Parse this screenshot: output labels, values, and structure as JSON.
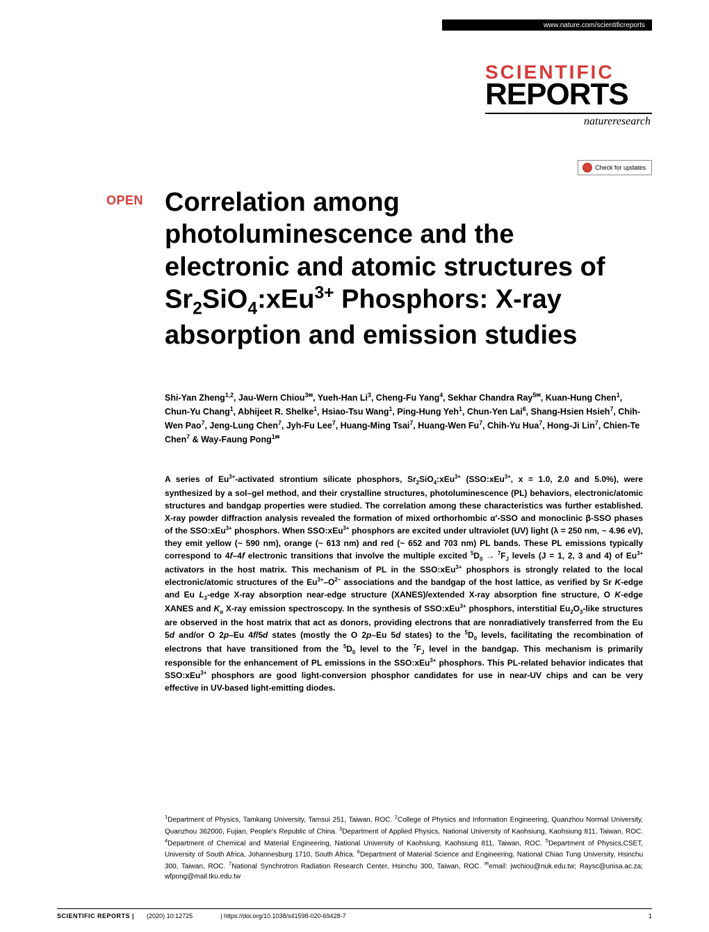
{
  "header": {
    "url": "www.nature.com/scientificreports"
  },
  "logo": {
    "line1": "SCIENTIFIC",
    "line2": "REPORTS",
    "subbrand": "natureresearch"
  },
  "updates_label": "Check for updates",
  "open_label": "OPEN",
  "title_html": "Correlation among photoluminescence and the electronic and atomic structures of Sr<sub>2</sub>SiO<sub>4</sub>:xEu<sup>3+</sup> Phosphors: X-ray absorption and emission studies",
  "authors_html": "Shi-Yan Zheng<sup>1,2</sup>, Jau-Wern Chiou<sup>3<span class='mail'>✉</span></sup>, Yueh-Han Li<sup>3</sup>, Cheng-Fu Yang<sup>4</sup>, Sekhar Chandra Ray<sup>5<span class='mail'>✉</span></sup>, Kuan-Hung Chen<sup>1</sup>, Chun-Yu Chang<sup>1</sup>, Abhijeet R. Shelke<sup>1</sup>, Hsiao-Tsu Wang<sup>1</sup>, Ping-Hung Yeh<sup>1</sup>, Chun-Yen Lai<sup>6</sup>, Shang-Hsien Hsieh<sup>7</sup>, Chih-Wen Pao<sup>7</sup>, Jeng-Lung Chen<sup>7</sup>, Jyh-Fu Lee<sup>7</sup>, Huang-Ming Tsai<sup>7</sup>, Huang-Wen Fu<sup>7</sup>, Chih-Yu Hua<sup>7</sup>, Hong-Ji Lin<sup>7</sup>, Chien-Te Chen<sup>7</sup> & Way-Faung Pong<sup>1<span class='mail'>✉</span></sup>",
  "abstract_html": "A series of Eu<sup>3+</sup>-activated strontium silicate phosphors, Sr<sub>2</sub>SiO<sub>4</sub>:xEu<sup>3+</sup> (SSO:xEu<sup>3+</sup>, x = 1.0, 2.0 and 5.0%), were synthesized by a sol–gel method, and their crystalline structures, photoluminescence (PL) behaviors, electronic/atomic structures and bandgap properties were studied. The correlation among these characteristics was further established. X-ray powder diffraction analysis revealed the formation of mixed orthorhombic α′-SSO and monoclinic β-SSO phases of the SSO:xEu<sup>3+</sup> phosphors. When SSO:xEu<sup>3+</sup> phosphors are excited under ultraviolet (UV) light (λ = 250 nm, ~ 4.96 eV), they emit yellow (~ 590 nm), orange (~ 613 nm) and red (~ 652 and 703 nm) PL bands. These PL emissions typically correspond to 4<i>f</i>–4<i>f</i> electronic transitions that involve the multiple excited <sup>5</sup>D<sub>0</sub> → <sup>7</sup>F<sub>J</sub> levels (J = 1, 2, 3 and 4) of Eu<sup>3+</sup> activators in the host matrix. This mechanism of PL in the SSO:xEu<sup>3+</sup> phosphors is strongly related to the local electronic/atomic structures of the Eu<sup>3+</sup>–O<sup>2−</sup> associations and the bandgap of the host lattice, as verified by Sr <i>K</i>-edge and Eu <i>L</i><sub>3</sub>-edge X-ray absorption near-edge structure (XANES)/extended X-ray absorption fine structure, O <i>K</i>-edge XANES and <i>K</i><sub>α</sub> X-ray emission spectroscopy. In the synthesis of SSO:xEu<sup>3+</sup> phosphors, interstitial Eu<sub>2</sub>O<sub>3</sub>-like structures are observed in the host matrix that act as donors, providing electrons that are nonradiatively transferred from the Eu 5<i>d</i> and/or O 2<i>p</i>–Eu 4<i>f</i>/5<i>d</i> states (mostly the O 2<i>p</i>–Eu 5<i>d</i> states) to the <sup>5</sup>D<sub>0</sub> levels, facilitating the recombination of electrons that have transitioned from the <sup>5</sup>D<sub>0</sub> level to the <sup>7</sup>F<sub>J</sub> level in the bandgap. This mechanism is primarily responsible for the enhancement of PL emissions in the SSO:xEu<sup>3+</sup> phosphors. This PL-related behavior indicates that SSO:xEu<sup>3+</sup> phosphors are good light-conversion phosphor candidates for use in near-UV chips and can be very effective in UV-based light-emitting diodes.",
  "affiliations_html": "<sup>1</sup>Department of Physics, Tamkang University, Tamsui 251, Taiwan, ROC. <sup>2</sup>College of Physics and Information Engineering, Quanzhou Normal University, Quanzhou 362000, Fujian, People's Republic of China. <sup>3</sup>Department of Applied Physics, National University of Kaohsiung, Kaohsiung 811, Taiwan, ROC. <sup>4</sup>Department of Chemical and Material Engineering, National University of Kaohsiung, Kaohsiung 811, Taiwan, ROC. <sup>5</sup>Department of Physics,CSET, University of South Africa, Johannesburg 1710, South Africa. <sup>6</sup>Department of Material Science and Engineering, National Chiao Tung University, Hsinchu 300, Taiwan, ROC. <sup>7</sup>National Synchrotron Radiation Research Center, Hsinchu 300, Taiwan, ROC. <sup>✉</sup>email: jwchiou@nuk.edu.tw; Raysc@unisa.ac.za; wfpong@mail.tku.edu.tw",
  "footer": {
    "journal": "SCIENTIFIC REPORTS",
    "citation": "(2020) 10:12725",
    "doi": "| https://doi.org/10.1038/s41598-020-69428-7",
    "page": "1"
  },
  "colors": {
    "accent_red": "#d63a3a",
    "text": "#000000",
    "background": "#ffffff",
    "rule": "#000000"
  }
}
